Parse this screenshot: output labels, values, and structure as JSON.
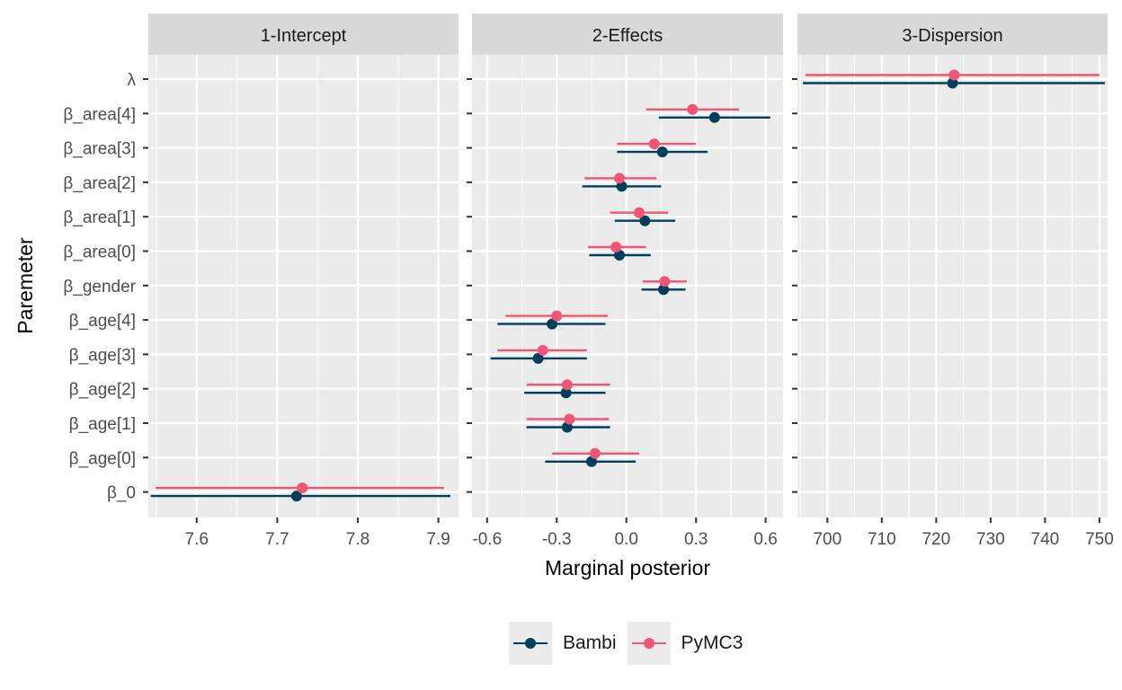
{
  "chart_data": {
    "type": "faceted-pointrange",
    "ylabel": "Paremeter",
    "xlabel": "Marginal posterior",
    "parameters": [
      "λ",
      "β_area[4]",
      "β_area[3]",
      "β_area[2]",
      "β_area[1]",
      "β_area[0]",
      "β_gender",
      "β_age[4]",
      "β_age[3]",
      "β_age[2]",
      "β_age[1]",
      "β_age[0]",
      "β_0"
    ],
    "colors": {
      "Bambi": "#003f5c",
      "PyMC3": "#ef5675"
    },
    "series": [
      {
        "name": "Bambi",
        "color": "#003f5c"
      },
      {
        "name": "PyMC3",
        "color": "#ef5675"
      }
    ],
    "facets": [
      {
        "title": "1-Intercept",
        "xlim": [
          7.54,
          7.925
        ],
        "ticks": [
          7.6,
          7.7,
          7.8,
          7.9
        ],
        "tick_labels": [
          "7.6",
          "7.7",
          "7.8",
          "7.9"
        ],
        "points": [
          {
            "param": "β_0",
            "series": "Bambi",
            "mean": 7.724,
            "low": 7.543,
            "high": 7.915
          },
          {
            "param": "β_0",
            "series": "PyMC3",
            "mean": 7.731,
            "low": 7.549,
            "high": 7.907
          }
        ]
      },
      {
        "title": "2-Effects",
        "xlim": [
          -0.665,
          0.675
        ],
        "ticks": [
          -0.6,
          -0.3,
          0.0,
          0.3,
          0.6
        ],
        "tick_labels": [
          "-0.6",
          "-0.3",
          "0.0",
          "0.3",
          "0.6"
        ],
        "points": [
          {
            "param": "β_area[4]",
            "series": "Bambi",
            "mean": 0.38,
            "low": 0.14,
            "high": 0.62
          },
          {
            "param": "β_area[4]",
            "series": "PyMC3",
            "mean": 0.285,
            "low": 0.085,
            "high": 0.485
          },
          {
            "param": "β_area[3]",
            "series": "Bambi",
            "mean": 0.155,
            "low": -0.04,
            "high": 0.35
          },
          {
            "param": "β_area[3]",
            "series": "PyMC3",
            "mean": 0.12,
            "low": -0.04,
            "high": 0.3
          },
          {
            "param": "β_area[2]",
            "series": "Bambi",
            "mean": -0.02,
            "low": -0.19,
            "high": 0.15
          },
          {
            "param": "β_area[2]",
            "series": "PyMC3",
            "mean": -0.03,
            "low": -0.18,
            "high": 0.13
          },
          {
            "param": "β_area[1]",
            "series": "Bambi",
            "mean": 0.08,
            "low": -0.05,
            "high": 0.21
          },
          {
            "param": "β_area[1]",
            "series": "PyMC3",
            "mean": 0.055,
            "low": -0.07,
            "high": 0.18
          },
          {
            "param": "β_area[0]",
            "series": "Bambi",
            "mean": -0.03,
            "low": -0.16,
            "high": 0.105
          },
          {
            "param": "β_area[0]",
            "series": "PyMC3",
            "mean": -0.045,
            "low": -0.165,
            "high": 0.085
          },
          {
            "param": "β_gender",
            "series": "Bambi",
            "mean": 0.16,
            "low": 0.065,
            "high": 0.255
          },
          {
            "param": "β_gender",
            "series": "PyMC3",
            "mean": 0.165,
            "low": 0.07,
            "high": 0.26
          },
          {
            "param": "β_age[4]",
            "series": "Bambi",
            "mean": -0.32,
            "low": -0.555,
            "high": -0.09
          },
          {
            "param": "β_age[4]",
            "series": "PyMC3",
            "mean": -0.3,
            "low": -0.52,
            "high": -0.08
          },
          {
            "param": "β_age[3]",
            "series": "Bambi",
            "mean": -0.38,
            "low": -0.585,
            "high": -0.17
          },
          {
            "param": "β_age[3]",
            "series": "PyMC3",
            "mean": -0.36,
            "low": -0.555,
            "high": -0.17
          },
          {
            "param": "β_age[2]",
            "series": "Bambi",
            "mean": -0.26,
            "low": -0.44,
            "high": -0.09
          },
          {
            "param": "β_age[2]",
            "series": "PyMC3",
            "mean": -0.255,
            "low": -0.43,
            "high": -0.07
          },
          {
            "param": "β_age[1]",
            "series": "Bambi",
            "mean": -0.255,
            "low": -0.43,
            "high": -0.07
          },
          {
            "param": "β_age[1]",
            "series": "PyMC3",
            "mean": -0.245,
            "low": -0.43,
            "h": 0,
            "high": -0.075
          },
          {
            "param": "β_age[0]",
            "series": "Bambi",
            "mean": -0.15,
            "low": -0.35,
            "high": 0.04
          },
          {
            "param": "β_age[0]",
            "series": "PyMC3",
            "mean": -0.135,
            "low": -0.32,
            "high": 0.055
          }
        ]
      },
      {
        "title": "3-Dispersion",
        "xlim": [
          694.5,
          751.5
        ],
        "ticks": [
          700,
          710,
          720,
          730,
          740,
          750
        ],
        "tick_labels": [
          "700",
          "710",
          "720",
          "730",
          "740",
          "750"
        ],
        "points": [
          {
            "param": "λ",
            "series": "Bambi",
            "mean": 723,
            "low": 695.5,
            "high": 751
          },
          {
            "param": "λ",
            "series": "PyMC3",
            "mean": 723.3,
            "low": 696,
            "high": 750
          }
        ]
      }
    ],
    "legend_position": "bottom"
  }
}
